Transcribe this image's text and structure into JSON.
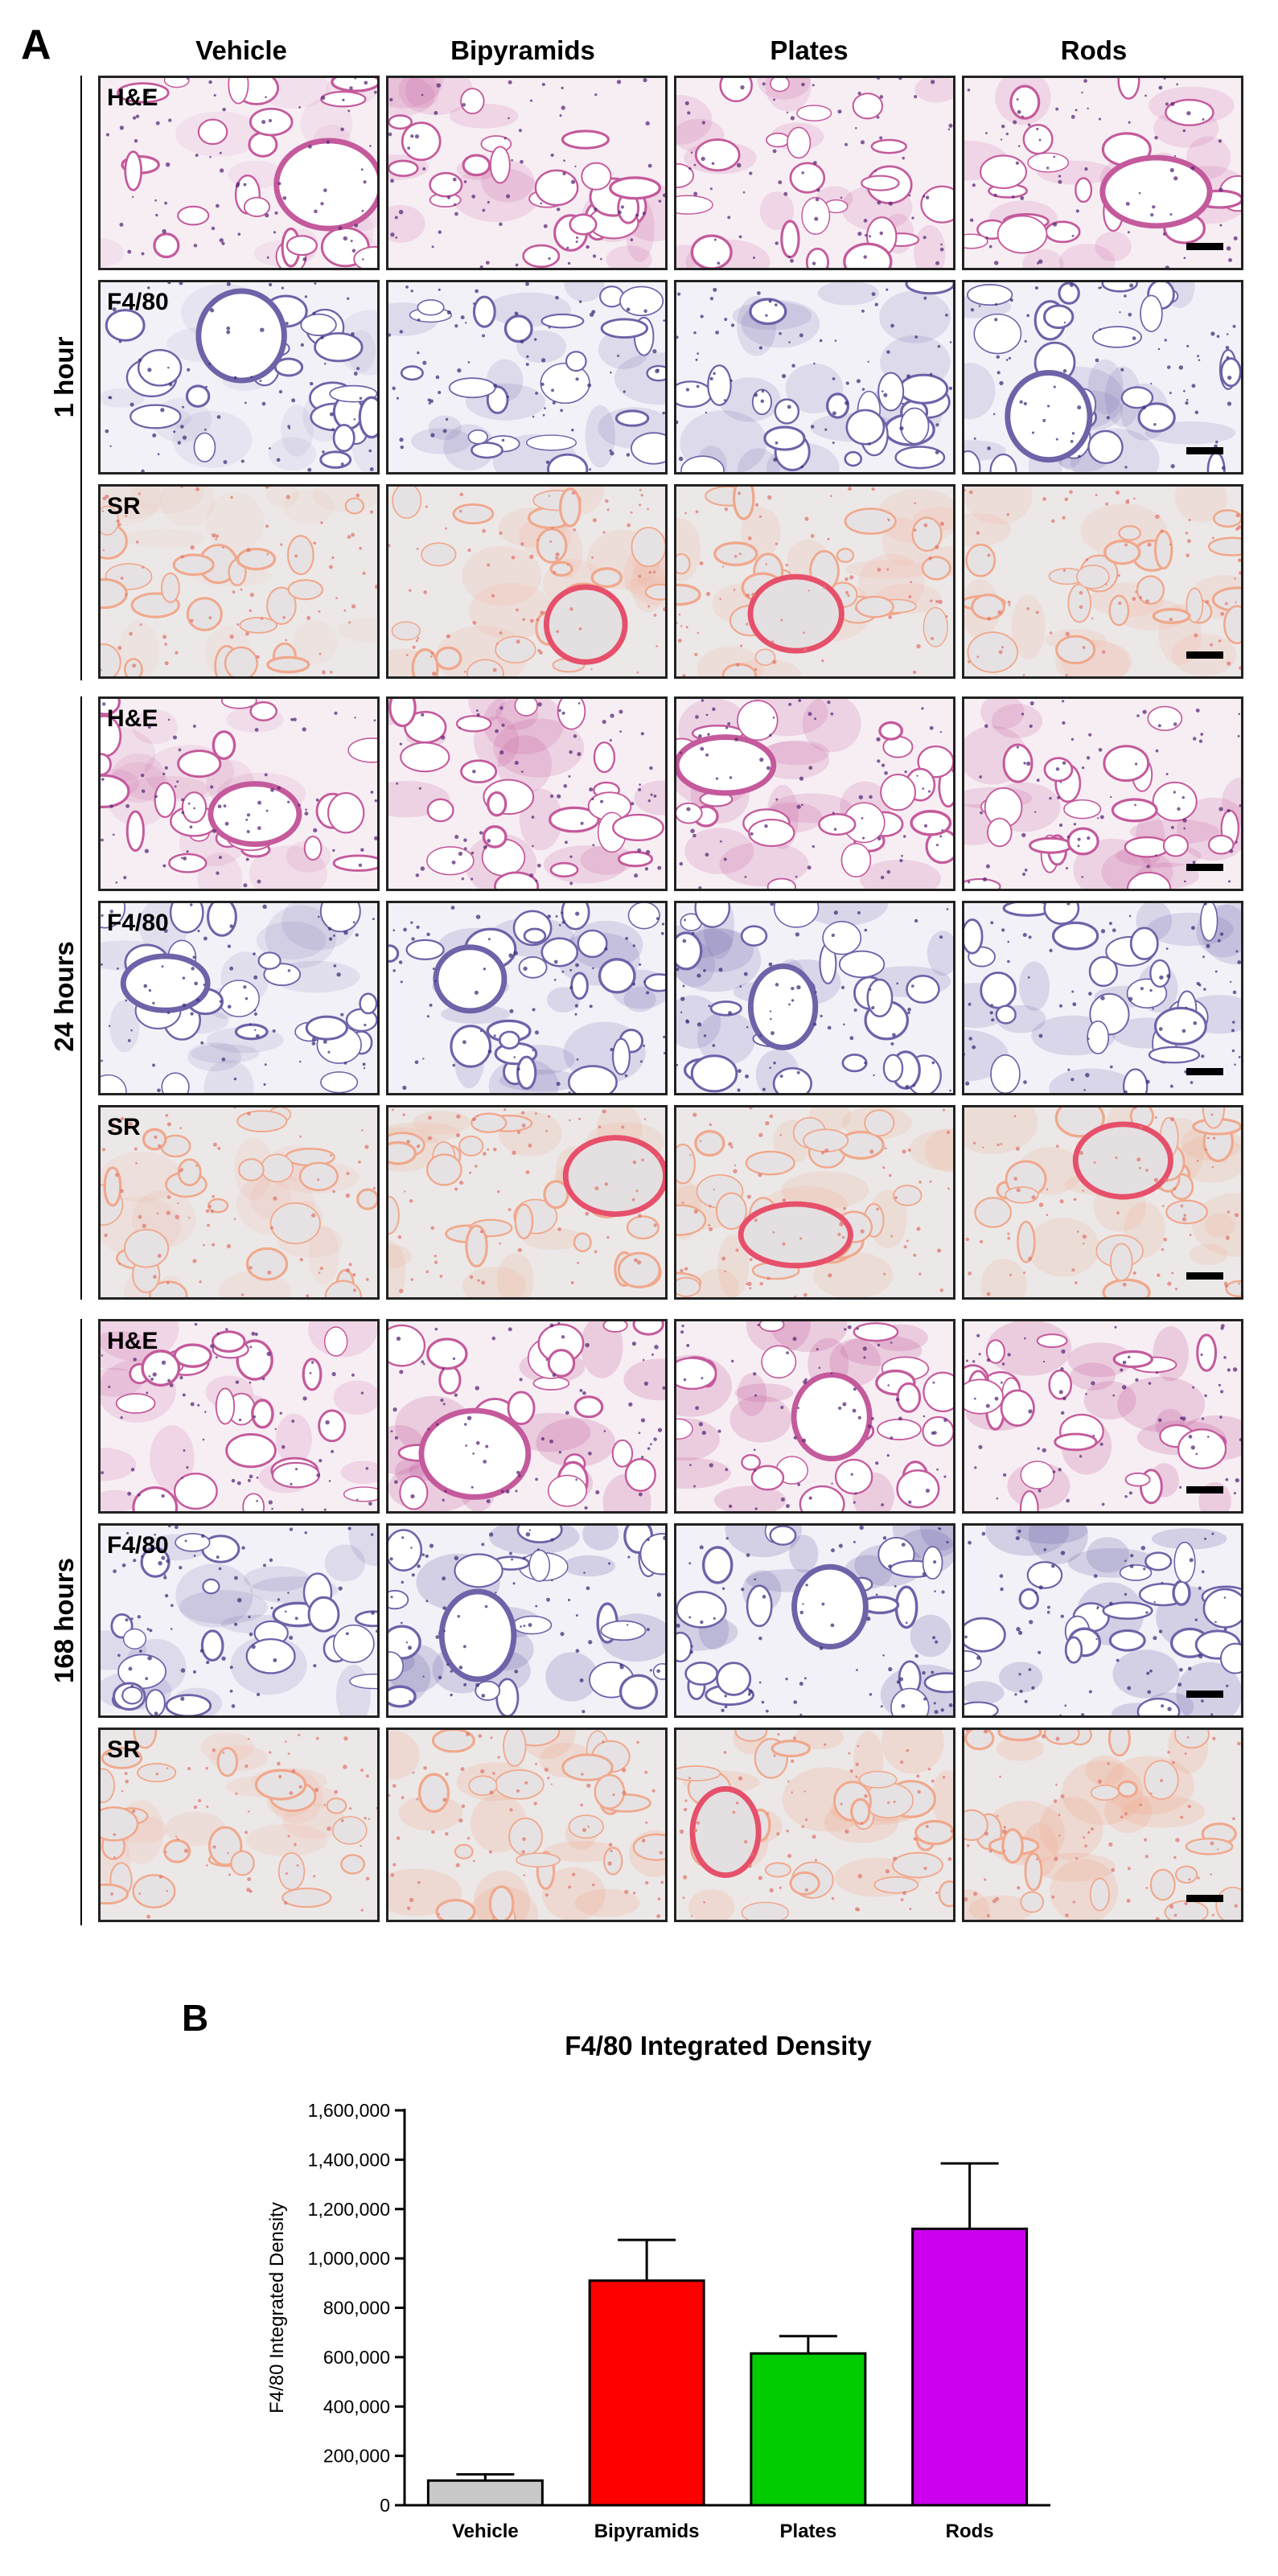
{
  "panel_a": {
    "letter": "A",
    "columns": [
      "Vehicle",
      "Bipyramids",
      "Plates",
      "Rods"
    ],
    "timepoints": [
      "1 hour",
      "24 hours",
      "168 hours"
    ],
    "stains": [
      "H&E",
      "F4/80",
      "SR"
    ]
  },
  "panel_b": {
    "letter": "B"
  },
  "chart_data": {
    "type": "bar",
    "title": "F4/80 Integrated Density",
    "xlabel": "",
    "ylabel": "F4/80 Integrated Density",
    "categories": [
      "Vehicle",
      "Bipyramids",
      "Plates",
      "Rods"
    ],
    "values": [
      100000,
      910000,
      615000,
      1120000
    ],
    "errors": [
      25000,
      165000,
      70000,
      265000
    ],
    "colors": [
      "#c8c8c8",
      "#ff0000",
      "#00cc00",
      "#cc00ee"
    ],
    "ylim": [
      0,
      1600000
    ],
    "yticks": [
      "0",
      "200,000",
      "400,000",
      "600,000",
      "800,000",
      "1,000,000",
      "1,200,000",
      "1,400,000",
      "1,600,000"
    ],
    "grid": false
  }
}
